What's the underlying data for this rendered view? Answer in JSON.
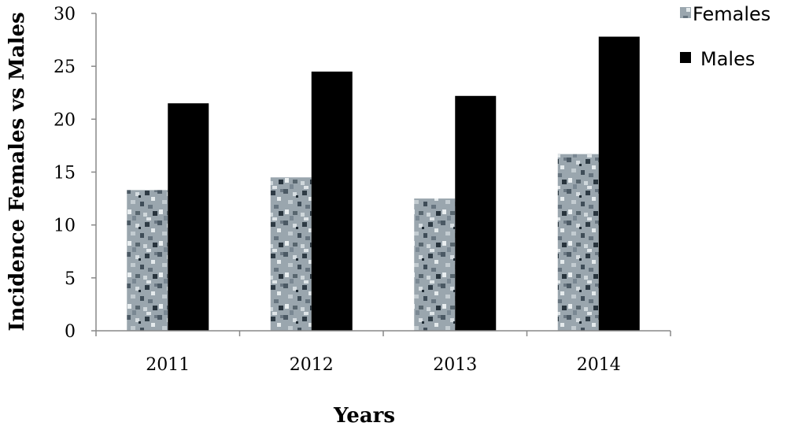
{
  "chart_data": {
    "type": "bar",
    "categories": [
      "2011",
      "2012",
      "2013",
      "2014"
    ],
    "series": [
      {
        "name": "Females",
        "values": [
          13.3,
          14.5,
          12.5,
          16.7
        ],
        "color": "#8a96a0",
        "pattern": "speckled"
      },
      {
        "name": "Males",
        "values": [
          21.5,
          24.5,
          22.2,
          27.8
        ],
        "color": "#000000",
        "pattern": "solid"
      }
    ],
    "title": "",
    "xlabel": "Years",
    "ylabel": "Incidence Females vs Males",
    "ylim": [
      0,
      30
    ],
    "yticks": [
      "0",
      "5",
      "10",
      "15",
      "20",
      "25",
      "30"
    ],
    "grid": false,
    "legend_position": "top-right"
  }
}
